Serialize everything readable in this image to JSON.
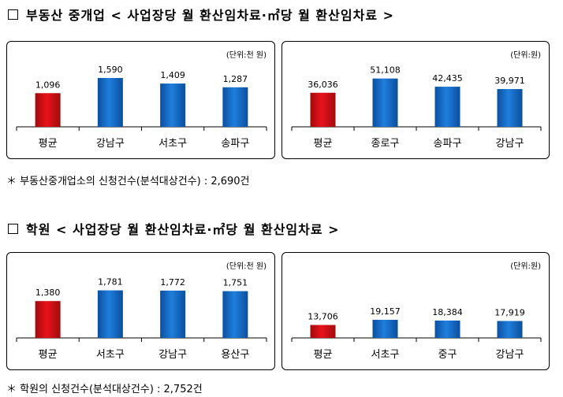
{
  "sections": [
    {
      "title": "부동산 중개업  < 사업장당 월 환산임차료·㎡당 월 환산임차료 >",
      "footnote": "＊ 부동산중개업소의 신청건수(분석대상건수) : 2,690건"
    },
    {
      "title": "학원  < 사업장당 월 환산임차료·㎡당 월 환산임차료 >",
      "footnote": "＊ 학원의 신청건수(분석대상건수) : 2,752건"
    }
  ],
  "colors": {
    "highlight": "#e8141a",
    "bar": "#1f7fdc",
    "bar_dark": "#0b4f9e",
    "axis": "#000000"
  },
  "chart_data": [
    {
      "type": "bar",
      "unit_label": "(단위:천 원)",
      "categories": [
        "평균",
        "강남구",
        "서초구",
        "송파구"
      ],
      "values": [
        1096,
        1590,
        1409,
        1287
      ],
      "value_labels": [
        "1,096",
        "1,590",
        "1,409",
        "1,287"
      ],
      "highlight_index": 0,
      "ylim": [
        0,
        2000
      ]
    },
    {
      "type": "bar",
      "unit_label": "(단위:원)",
      "categories": [
        "평균",
        "종로구",
        "송파구",
        "강남구"
      ],
      "values": [
        36036,
        51108,
        42435,
        39971
      ],
      "value_labels": [
        "36,036",
        "51,108",
        "42,435",
        "39,971"
      ],
      "highlight_index": 0,
      "ylim": [
        0,
        65000
      ]
    },
    {
      "type": "bar",
      "unit_label": "(단위:천 원)",
      "categories": [
        "평균",
        "서초구",
        "강남구",
        "용산구"
      ],
      "values": [
        1380,
        1781,
        1772,
        1751
      ],
      "value_labels": [
        "1,380",
        "1,781",
        "1,772",
        "1,751"
      ],
      "highlight_index": 0,
      "ylim": [
        0,
        2300
      ]
    },
    {
      "type": "bar",
      "unit_label": "(단위:원)",
      "categories": [
        "평균",
        "서초구",
        "중구",
        "강남구"
      ],
      "values": [
        13706,
        19157,
        18384,
        17919
      ],
      "value_labels": [
        "13,706",
        "19,157",
        "18,384",
        "17,919"
      ],
      "highlight_index": 0,
      "ylim": [
        0,
        65000
      ]
    }
  ]
}
